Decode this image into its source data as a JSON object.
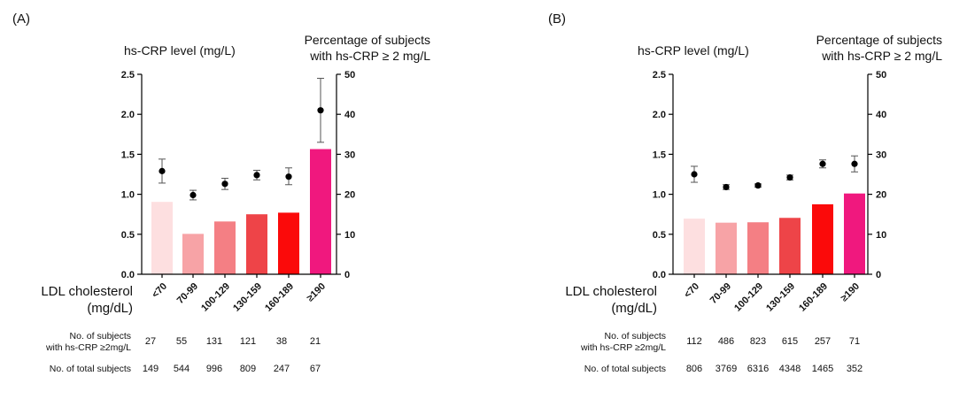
{
  "x_axis_label_line1": "LDL cholesterol",
  "x_axis_label_line2": "(mg/dL)",
  "row1_label_line1": "No. of subjects",
  "row1_label_line2": "with hs-CRP ≥2mg/L",
  "row2_label": "No. of total subjects",
  "bar_colors": [
    "#fddfe0",
    "#f7a3a6",
    "#f47f84",
    "#ee4448",
    "#fb0a0a",
    "#f0187e"
  ],
  "chart_data": [
    {
      "type": "bar",
      "panel_label": "(A)",
      "categories": [
        "<70",
        "70-99",
        "100-129",
        "130-159",
        "160-189",
        "≥190"
      ],
      "left_axis": {
        "title": "hs-CRP level (mg/L)",
        "ylim": [
          0,
          2.5
        ],
        "ticks": [
          "0.0",
          "0.5",
          "1.0",
          "1.5",
          "2.0",
          "2.5"
        ]
      },
      "right_axis": {
        "title_line1": "Percentage of subjects",
        "title_line2": "with hs-CRP ≥ 2 mg/L",
        "ylim": [
          0,
          50
        ],
        "ticks": [
          "0",
          "10",
          "20",
          "30",
          "40",
          "50"
        ]
      },
      "series": [
        {
          "type": "bar",
          "axis": "right",
          "values": [
            18.1,
            10.1,
            13.2,
            15.0,
            15.4,
            31.3
          ]
        },
        {
          "type": "point_errorbar",
          "axis": "left",
          "values": [
            1.29,
            0.99,
            1.13,
            1.24,
            1.22,
            2.05
          ],
          "err_low": [
            1.14,
            0.93,
            1.06,
            1.18,
            1.12,
            1.65
          ],
          "err_high": [
            1.44,
            1.05,
            1.2,
            1.3,
            1.33,
            2.45
          ]
        }
      ],
      "subjects_with_hscrp": [
        "27",
        "55",
        "131",
        "121",
        "38",
        "21"
      ],
      "total_subjects": [
        "149",
        "544",
        "996",
        "809",
        "247",
        "67"
      ]
    },
    {
      "type": "bar",
      "panel_label": "(B)",
      "categories": [
        "<70",
        "70-99",
        "100-129",
        "130-159",
        "160-189",
        "≥190"
      ],
      "left_axis": {
        "title": "hs-CRP level (mg/L)",
        "ylim": [
          0,
          2.5
        ],
        "ticks": [
          "0.0",
          "0.5",
          "1.0",
          "1.5",
          "2.0",
          "2.5"
        ]
      },
      "right_axis": {
        "title_line1": "Percentage of subjects",
        "title_line2": "with hs-CRP ≥ 2 mg/L",
        "ylim": [
          0,
          50
        ],
        "ticks": [
          "0",
          "10",
          "20",
          "30",
          "40",
          "50"
        ]
      },
      "series": [
        {
          "type": "bar",
          "axis": "right",
          "values": [
            13.9,
            12.9,
            13.0,
            14.1,
            17.5,
            20.2
          ]
        },
        {
          "type": "point_errorbar",
          "axis": "left",
          "values": [
            1.25,
            1.09,
            1.11,
            1.21,
            1.38,
            1.38
          ],
          "err_low": [
            1.15,
            1.06,
            1.09,
            1.18,
            1.33,
            1.28
          ],
          "err_high": [
            1.35,
            1.12,
            1.13,
            1.24,
            1.43,
            1.48
          ]
        }
      ],
      "subjects_with_hscrp": [
        "112",
        "486",
        "823",
        "615",
        "257",
        "71"
      ],
      "total_subjects": [
        "806",
        "3769",
        "6316",
        "4348",
        "1465",
        "352"
      ]
    }
  ]
}
